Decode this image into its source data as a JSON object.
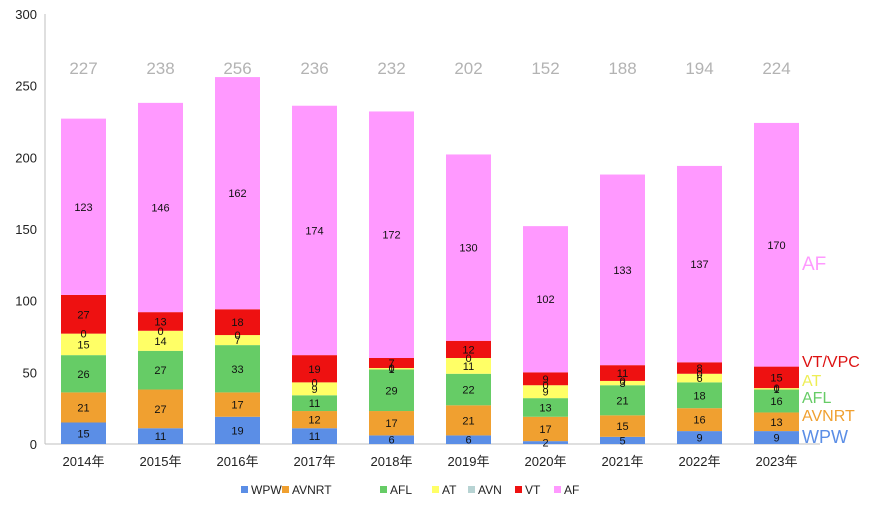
{
  "chart_data": {
    "type": "bar",
    "stacked": true,
    "categories": [
      "2014年",
      "2015年",
      "2016年",
      "2017年",
      "2018年",
      "2019年",
      "2020年",
      "2021年",
      "2022年",
      "2023年"
    ],
    "totals": [
      227,
      238,
      256,
      236,
      232,
      202,
      152,
      188,
      194,
      224
    ],
    "ylim": [
      0,
      300
    ],
    "yticks": [
      0,
      50,
      100,
      150,
      200,
      250,
      300
    ],
    "grid": false,
    "legend_position": "bottom",
    "series": [
      {
        "name": "WPW",
        "color": "#5b8ee6",
        "values": [
          15,
          11,
          19,
          11,
          6,
          6,
          2,
          5,
          9,
          9
        ]
      },
      {
        "name": "AVNRT",
        "color": "#f0a030",
        "values": [
          21,
          27,
          17,
          12,
          17,
          21,
          17,
          15,
          16,
          13
        ]
      },
      {
        "name": "AFL",
        "color": "#66cc66",
        "values": [
          26,
          27,
          33,
          11,
          29,
          22,
          13,
          21,
          18,
          16
        ]
      },
      {
        "name": "AT",
        "color": "#ffff66",
        "values": [
          15,
          14,
          7,
          9,
          1,
          11,
          9,
          3,
          6,
          1
        ]
      },
      {
        "name": "AVN",
        "color": "#b7d3d3",
        "values": [
          0,
          0,
          0,
          0,
          0,
          0,
          0,
          0,
          0,
          0
        ]
      },
      {
        "name": "VT",
        "color": "#ee1111",
        "values": [
          27,
          13,
          18,
          19,
          7,
          12,
          9,
          11,
          8,
          15
        ]
      },
      {
        "name": "AF",
        "color": "#ff99ff",
        "values": [
          123,
          146,
          162,
          174,
          172,
          130,
          102,
          133,
          137,
          170
        ]
      }
    ],
    "segment_labels": [
      [
        "15",
        "11",
        "19",
        "11",
        "6",
        "6",
        "2",
        "5",
        "9",
        "9"
      ],
      [
        "21",
        "27",
        "17",
        "12",
        "17",
        "21",
        "17",
        "15",
        "16",
        "13"
      ],
      [
        "26",
        "27",
        "33",
        "11",
        "29",
        "22",
        "13",
        "21",
        "18",
        "16"
      ],
      [
        "15",
        "14",
        "7",
        "9",
        "1",
        "11",
        "9",
        "3",
        "6",
        "1"
      ],
      [
        "0",
        "0",
        "0",
        "0",
        "0",
        "0",
        "0",
        "0",
        "0",
        "0"
      ],
      [
        "27",
        "13",
        "18",
        "19",
        "7",
        "12",
        "9",
        "11",
        "8",
        "15"
      ],
      [
        "123",
        "146",
        "162",
        "174",
        "172",
        "130",
        "102",
        "133",
        "137",
        "170"
      ]
    ],
    "side_labels": [
      {
        "text": "AF",
        "color": "#ff99ff"
      },
      {
        "text": "VT/VPC",
        "color": "#dd1111"
      },
      {
        "text": "AT",
        "color": "#eeee55"
      },
      {
        "text": "AFL",
        "color": "#66cc66"
      },
      {
        "text": "AVNRT",
        "color": "#f0a030"
      },
      {
        "text": "WPW",
        "color": "#5b8ee6"
      }
    ]
  }
}
